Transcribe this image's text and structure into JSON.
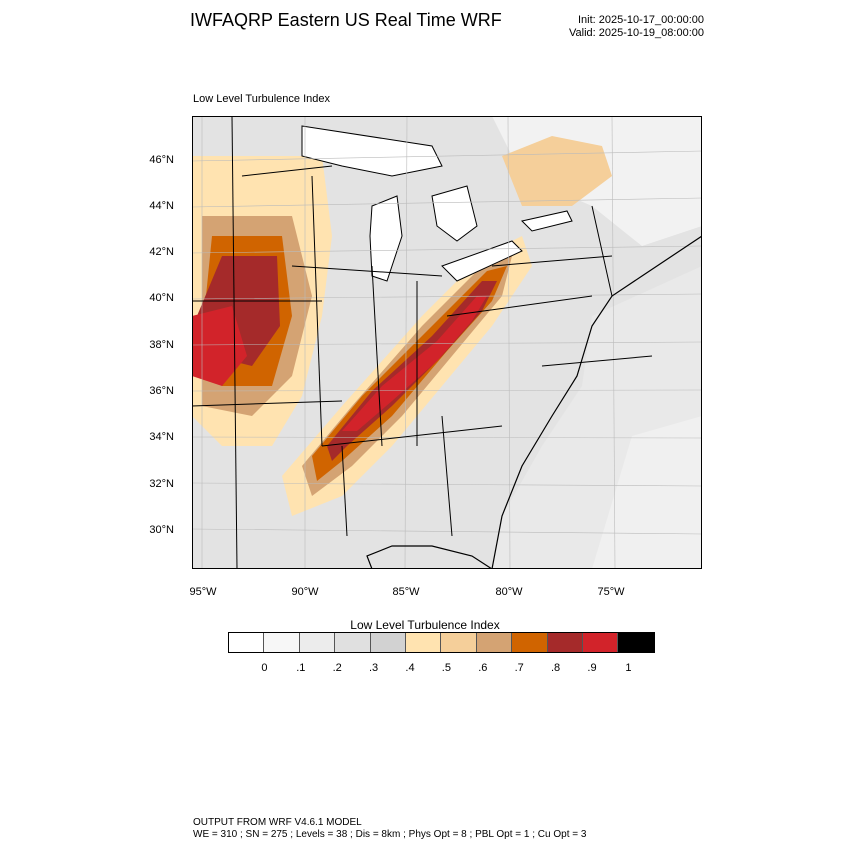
{
  "header": {
    "title": "IWFAQRP Eastern US Real Time WRF",
    "init": "Init: 2025-10-17_00:00:00",
    "valid": "Valid: 2025-10-19_08:00:00"
  },
  "map": {
    "subtitle": "Low Level Turbulence Index",
    "lat_labels": [
      "46°N",
      "44°N",
      "42°N",
      "40°N",
      "38°N",
      "36°N",
      "34°N",
      "32°N",
      "30°N"
    ],
    "lon_labels": [
      "95°W",
      "90°W",
      "85°W",
      "80°W",
      "75°W"
    ]
  },
  "colorbar": {
    "title": "Low Level Turbulence Index",
    "ticks": [
      "0",
      ".1",
      ".2",
      ".3",
      ".4",
      ".5",
      ".6",
      ".7",
      ".8",
      ".9",
      "1"
    ],
    "colors": [
      "#ffffff",
      "#f7f7f7",
      "#ececec",
      "#e0e0e0",
      "#d2d2d2",
      "#ffe3b0",
      "#f5cf9a",
      "#d4a373",
      "#d06400",
      "#a52a2a",
      "#d2232a",
      "#000000"
    ]
  },
  "footer": {
    "line1": "OUTPUT FROM WRF V4.6.1 MODEL",
    "line2": "WE = 310 ; SN = 275 ; Levels = 38 ; Dis = 8km ; Phys Opt = 8 ; PBL Opt = 1 ; Cu Opt = 3"
  }
}
